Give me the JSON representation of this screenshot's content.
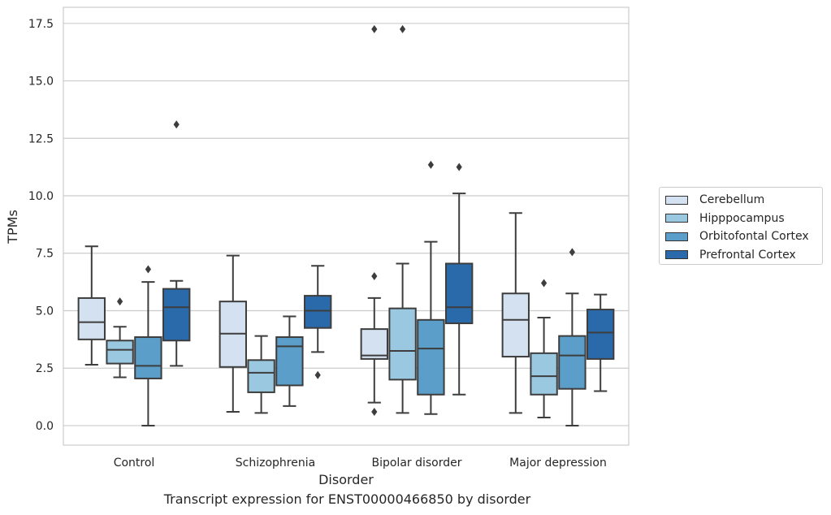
{
  "chart_data": {
    "type": "boxplot",
    "title": "",
    "xlabel": "Disorder",
    "ylabel": "TPMs",
    "caption": "Transcript expression for ENST00000466850 by disorder",
    "ylim": [
      -0.85,
      18.2
    ],
    "yticks": [
      0.0,
      2.5,
      5.0,
      7.5,
      10.0,
      12.5,
      15.0,
      17.5
    ],
    "ytick_labels": [
      "0.0",
      "2.5",
      "5.0",
      "7.5",
      "10.0",
      "12.5",
      "15.0",
      "17.5"
    ],
    "grid": "horizontal",
    "legend_placement": "outside-right",
    "categories": [
      "Control",
      "Schizophrenia",
      "Bipolar disorder",
      "Major depression"
    ],
    "series": [
      {
        "name": "Cerebellum",
        "color": "#d3e1f0",
        "boxes": [
          {
            "whislo": 2.65,
            "q1": 3.75,
            "med": 4.5,
            "q3": 5.55,
            "whishi": 7.8,
            "fliers": []
          },
          {
            "whislo": 0.6,
            "q1": 2.55,
            "med": 4.0,
            "q3": 5.4,
            "whishi": 7.4,
            "fliers": []
          },
          {
            "whislo": 1.0,
            "q1": 2.9,
            "med": 3.05,
            "q3": 4.2,
            "whishi": 5.55,
            "fliers": [
              6.5,
              0.6,
              17.25
            ]
          },
          {
            "whislo": 0.55,
            "q1": 3.0,
            "med": 4.6,
            "q3": 5.75,
            "whishi": 9.25,
            "fliers": []
          }
        ]
      },
      {
        "name": "Hipppocampus",
        "color": "#9ac8e0",
        "boxes": [
          {
            "whislo": 2.1,
            "q1": 2.7,
            "med": 3.3,
            "q3": 3.7,
            "whishi": 4.3,
            "fliers": [
              5.4
            ]
          },
          {
            "whislo": 0.55,
            "q1": 1.45,
            "med": 2.3,
            "q3": 2.85,
            "whishi": 3.9,
            "fliers": []
          },
          {
            "whislo": 0.55,
            "q1": 2.0,
            "med": 3.25,
            "q3": 5.1,
            "whishi": 7.05,
            "fliers": [
              17.25
            ]
          },
          {
            "whislo": 0.35,
            "q1": 1.35,
            "med": 2.15,
            "q3": 3.15,
            "whishi": 4.7,
            "fliers": [
              6.2
            ]
          }
        ]
      },
      {
        "name": "Orbitofontal Cortex",
        "color": "#5b9ec9",
        "boxes": [
          {
            "whislo": 0.0,
            "q1": 2.05,
            "med": 2.6,
            "q3": 3.85,
            "whishi": 6.25,
            "fliers": [
              6.8
            ]
          },
          {
            "whislo": 0.85,
            "q1": 1.75,
            "med": 3.45,
            "q3": 3.85,
            "whishi": 4.75,
            "fliers": []
          },
          {
            "whislo": 0.5,
            "q1": 1.35,
            "med": 3.35,
            "q3": 4.6,
            "whishi": 8.0,
            "fliers": [
              11.35
            ]
          },
          {
            "whislo": 0.0,
            "q1": 1.6,
            "med": 3.05,
            "q3": 3.9,
            "whishi": 5.75,
            "fliers": [
              7.55
            ]
          }
        ]
      },
      {
        "name": "Prefrontal Cortex",
        "color": "#2a6aab",
        "boxes": [
          {
            "whislo": 2.6,
            "q1": 3.7,
            "med": 5.15,
            "q3": 5.95,
            "whishi": 6.3,
            "fliers": [
              13.1
            ]
          },
          {
            "whislo": 3.2,
            "q1": 4.25,
            "med": 5.0,
            "q3": 5.65,
            "whishi": 6.95,
            "fliers": [
              2.2
            ]
          },
          {
            "whislo": 1.35,
            "q1": 4.45,
            "med": 5.15,
            "q3": 7.05,
            "whishi": 10.1,
            "fliers": [
              11.25
            ]
          },
          {
            "whislo": 1.5,
            "q1": 2.9,
            "med": 4.05,
            "q3": 5.05,
            "whishi": 5.7,
            "fliers": []
          }
        ]
      }
    ]
  }
}
